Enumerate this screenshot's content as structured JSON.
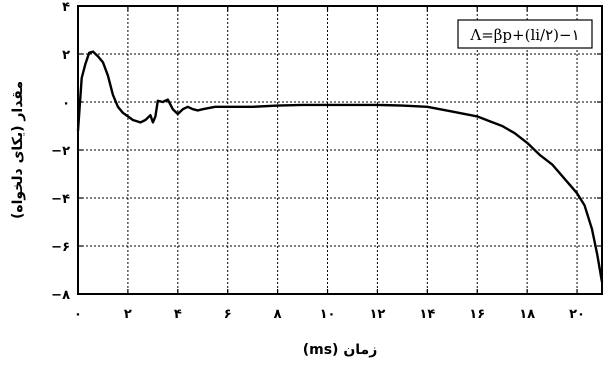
{
  "chart_data": {
    "type": "line",
    "xlabel": "زمان (ms)",
    "ylabel": "مقدار (یکای دلخواه)",
    "xlim": [
      0,
      21
    ],
    "ylim": [
      -8,
      4
    ],
    "x_ticks": [
      0,
      2,
      4,
      6,
      8,
      10,
      12,
      14,
      16,
      18,
      20
    ],
    "x_tick_labels": [
      "۰",
      "۲",
      "۴",
      "۶",
      "۸",
      "۱۰",
      "۱۲",
      "۱۴",
      "۱۶",
      "۱۸",
      "۲۰"
    ],
    "y_ticks": [
      4,
      2,
      0,
      -2,
      -4,
      -6,
      -8
    ],
    "y_tick_labels": [
      "۴",
      "۲",
      "۰",
      "−۲",
      "−۴",
      "−۶",
      "−۸"
    ],
    "grid": true,
    "legend_position": "top-right",
    "series": [
      {
        "name": "Λ=βp+(li/۲)−۱",
        "color": "#000000",
        "x": [
          0,
          0.15,
          0.3,
          0.45,
          0.6,
          0.8,
          1.0,
          1.2,
          1.4,
          1.6,
          1.8,
          2.0,
          2.2,
          2.5,
          2.7,
          2.9,
          3.0,
          3.1,
          3.2,
          3.4,
          3.6,
          3.8,
          4.0,
          4.2,
          4.4,
          4.6,
          4.8,
          5.0,
          5.5,
          6,
          7,
          8,
          9,
          10,
          11,
          12,
          13,
          14,
          15,
          16,
          16.5,
          17,
          17.5,
          18,
          18.5,
          19,
          19.5,
          20,
          20.3,
          20.6,
          20.8,
          21.0
        ],
        "y": [
          -1.2,
          1.0,
          1.6,
          2.05,
          2.1,
          1.9,
          1.65,
          1.1,
          0.3,
          -0.2,
          -0.45,
          -0.6,
          -0.75,
          -0.85,
          -0.75,
          -0.55,
          -0.85,
          -0.6,
          0.05,
          0.0,
          0.1,
          -0.3,
          -0.5,
          -0.3,
          -0.2,
          -0.3,
          -0.35,
          -0.3,
          -0.2,
          -0.2,
          -0.2,
          -0.15,
          -0.12,
          -0.12,
          -0.12,
          -0.12,
          -0.15,
          -0.2,
          -0.4,
          -0.6,
          -0.8,
          -1.0,
          -1.3,
          -1.7,
          -2.2,
          -2.6,
          -3.2,
          -3.8,
          -4.3,
          -5.3,
          -6.3,
          -7.5
        ]
      }
    ]
  }
}
